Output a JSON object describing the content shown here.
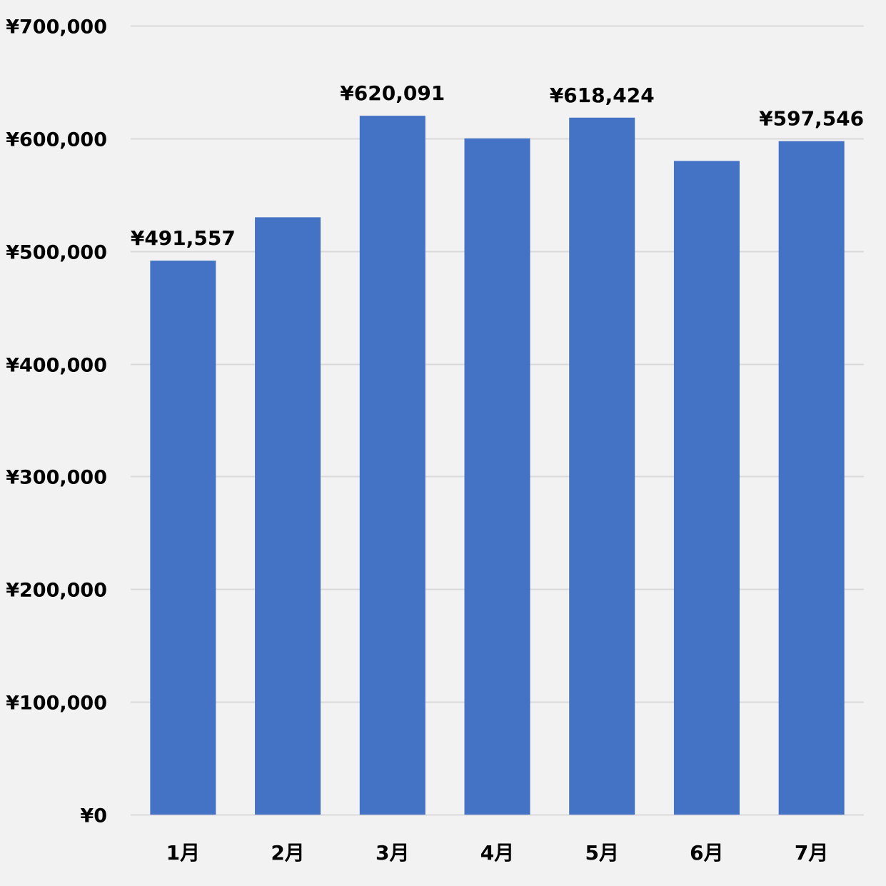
{
  "chart_data": {
    "type": "bar",
    "categories": [
      "1月",
      "2月",
      "3月",
      "4月",
      "5月",
      "6月",
      "7月"
    ],
    "values": [
      491557,
      530000,
      620091,
      600000,
      618424,
      580000,
      597546
    ],
    "data_labels": [
      "¥491,557",
      "",
      "¥620,091",
      "",
      "¥618,424",
      "",
      "¥597,546"
    ],
    "ylim": [
      0,
      700000
    ],
    "y_ticks": [
      0,
      100000,
      200000,
      300000,
      400000,
      500000,
      600000,
      700000
    ],
    "y_tick_labels": [
      "¥0",
      "¥100,000",
      "¥200,000",
      "¥300,000",
      "¥400,000",
      "¥500,000",
      "¥600,000",
      "¥700,000"
    ],
    "grid": true,
    "legend": "none",
    "colors": {
      "bar": "#4472c4",
      "grid": "#d9d9d9",
      "background": "#f2f2f2",
      "text": "#000000"
    }
  }
}
